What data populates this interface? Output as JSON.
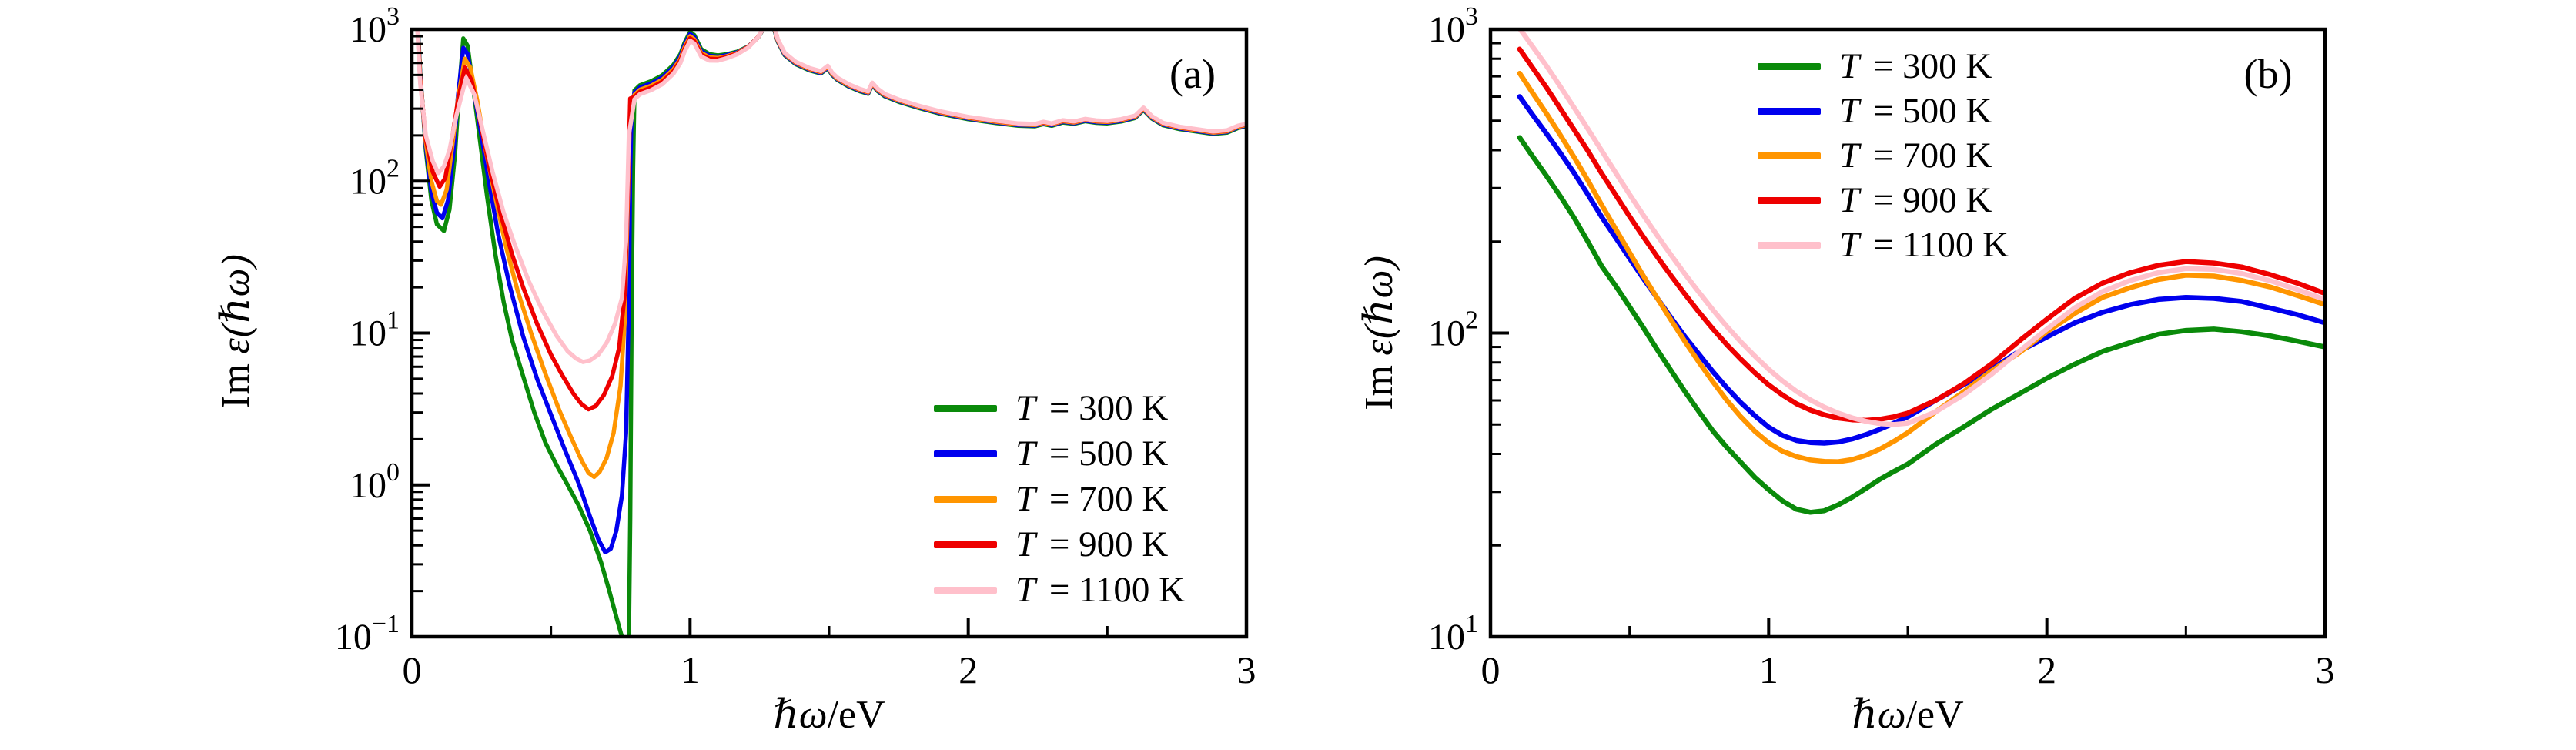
{
  "figure": {
    "background": "#ffffff",
    "axis_color": "#000000",
    "ylabel": "Im ε(ℏω)",
    "ylabel_prefix": "Im",
    "ylabel_symbol": "ε(ℏω)",
    "xlabel": "ℏω/eV",
    "xlabel_symbol": "ℏω",
    "xlabel_unit": "/eV"
  },
  "legend": {
    "entries": [
      {
        "label": "T = 300 K",
        "symbol": "T",
        "rest": "= 300 K",
        "temperature_K": 300,
        "color": "#0a8a0a"
      },
      {
        "label": "T = 500 K",
        "symbol": "T",
        "rest": "= 500 K",
        "temperature_K": 500,
        "color": "#0000ee"
      },
      {
        "label": "T = 700 K",
        "symbol": "T",
        "rest": "= 700 K",
        "temperature_K": 700,
        "color": "#ff9500"
      },
      {
        "label": "T = 900 K",
        "symbol": "T",
        "rest": "= 900 K",
        "temperature_K": 900,
        "color": "#ee0000"
      },
      {
        "label": "T = 1100 K",
        "symbol": "T",
        "rest": "= 1100 K",
        "temperature_K": 1100,
        "color": "#ffc0cb"
      }
    ]
  },
  "chart_data": [
    {
      "type": "line",
      "panel_label": "(a)",
      "xlabel": "ℏω/eV",
      "ylabel": "Im ε(ℏω)",
      "x_scale": "linear",
      "y_scale": "log",
      "xlim": [
        0,
        3
      ],
      "ylim": [
        0.1,
        1000
      ],
      "x_ticks": [
        0,
        1,
        2,
        3
      ],
      "x_tick_labels": [
        "0",
        "1",
        "2",
        "3"
      ],
      "x_minor_ticks": [
        0.5,
        1.5,
        2.5
      ],
      "y_ticks": [
        {
          "value": 1000,
          "exp": "3"
        },
        {
          "value": 100,
          "exp": "2"
        },
        {
          "value": 10,
          "exp": "1"
        },
        {
          "value": 1,
          "exp": "0"
        },
        {
          "value": 0.1,
          "exp": "−1"
        }
      ],
      "grid": false,
      "legend_position": "lower right",
      "line_width": 5.5,
      "blend_range": [
        1.0,
        1.3
      ],
      "common_tail": {
        "x": [
          0.8,
          0.82,
          0.86,
          0.9,
          0.94,
          0.965,
          0.98,
          1.0,
          1.015,
          1.04,
          1.07,
          1.1,
          1.13,
          1.17,
          1.21,
          1.245,
          1.27,
          1.285,
          1.3,
          1.315,
          1.34,
          1.38,
          1.43,
          1.47,
          1.495,
          1.51,
          1.53,
          1.57,
          1.61,
          1.64,
          1.655,
          1.675,
          1.7,
          1.75,
          1.82,
          1.9,
          2.0,
          2.1,
          2.18,
          2.24,
          2.27,
          2.3,
          2.34,
          2.38,
          2.42,
          2.46,
          2.5,
          2.55,
          2.6,
          2.63,
          2.66,
          2.7,
          2.76,
          2.82,
          2.88,
          2.93,
          2.97,
          3.0
        ],
        "base": [
          370,
          400,
          425,
          465,
          545,
          640,
          760,
          900,
          860,
          700,
          655,
          650,
          668,
          705,
          775,
          900,
          1080,
          1150,
          1080,
          860,
          700,
          610,
          555,
          530,
          575,
          520,
          480,
          435,
          405,
          390,
          445,
          405,
          375,
          345,
          315,
          288,
          265,
          250,
          240,
          238,
          246,
          240,
          252,
          247,
          257,
          251,
          249,
          256,
          270,
          305,
          268,
          242,
          228,
          220,
          212,
          216,
          232,
          238
        ]
      },
      "series": [
        {
          "name": "T = 300 K",
          "color": "#0a8a0a",
          "shoulder_factor": 1.07,
          "tail_factor": 0.965,
          "x": [
            0.018,
            0.03,
            0.05,
            0.07,
            0.09,
            0.115,
            0.135,
            0.155,
            0.17,
            0.185,
            0.2,
            0.22,
            0.245,
            0.27,
            0.3,
            0.33,
            0.36,
            0.4,
            0.44,
            0.48,
            0.52,
            0.56,
            0.6,
            0.64,
            0.68,
            0.71,
            0.735,
            0.755,
            0.77,
            0.78,
            0.785,
            0.79,
            0.795
          ],
          "y": [
            1400,
            520,
            160,
            75,
            52,
            47,
            65,
            150,
            400,
            870,
            780,
            420,
            185,
            80,
            33,
            16,
            9,
            5.2,
            3.0,
            1.9,
            1.35,
            1.0,
            0.73,
            0.5,
            0.31,
            0.2,
            0.135,
            0.1,
            0.088,
            0.09,
            0.6,
            15,
            120
          ]
        },
        {
          "name": "T = 500 K",
          "color": "#0000ee",
          "shoulder_factor": 1.035,
          "tail_factor": 0.975,
          "x": [
            0.018,
            0.03,
            0.05,
            0.07,
            0.09,
            0.11,
            0.13,
            0.15,
            0.165,
            0.185,
            0.2,
            0.22,
            0.25,
            0.28,
            0.31,
            0.35,
            0.4,
            0.45,
            0.5,
            0.55,
            0.6,
            0.64,
            0.67,
            0.695,
            0.715,
            0.735,
            0.755,
            0.77,
            0.78,
            0.785,
            0.79
          ],
          "y": [
            1350,
            500,
            170,
            85,
            62,
            57,
            75,
            160,
            350,
            755,
            690,
            420,
            200,
            92,
            45,
            21,
            9.5,
            5.0,
            2.9,
            1.7,
            1.02,
            0.62,
            0.44,
            0.36,
            0.38,
            0.5,
            0.85,
            2.2,
            15,
            120,
            300
          ]
        },
        {
          "name": "T = 700 K",
          "color": "#ff9500",
          "shoulder_factor": 1.0,
          "tail_factor": 0.985,
          "x": [
            0.018,
            0.03,
            0.05,
            0.07,
            0.09,
            0.105,
            0.125,
            0.145,
            0.165,
            0.19,
            0.21,
            0.235,
            0.265,
            0.3,
            0.34,
            0.38,
            0.43,
            0.48,
            0.53,
            0.57,
            0.61,
            0.635,
            0.655,
            0.675,
            0.7,
            0.725,
            0.75,
            0.765,
            0.775,
            0.785
          ],
          "y": [
            1300,
            480,
            180,
            100,
            74,
            70,
            88,
            170,
            340,
            640,
            560,
            340,
            160,
            78,
            36,
            19,
            9.8,
            5.4,
            3.1,
            2.1,
            1.45,
            1.2,
            1.13,
            1.22,
            1.5,
            2.2,
            4.5,
            12,
            60,
            320
          ]
        },
        {
          "name": "T = 900 K",
          "color": "#ee0000",
          "shoulder_factor": 0.97,
          "tail_factor": 0.995,
          "x": [
            0.018,
            0.03,
            0.05,
            0.075,
            0.1,
            0.12,
            0.14,
            0.165,
            0.19,
            0.215,
            0.245,
            0.28,
            0.32,
            0.36,
            0.4,
            0.45,
            0.5,
            0.54,
            0.58,
            0.61,
            0.635,
            0.66,
            0.69,
            0.72,
            0.745,
            0.765,
            0.775,
            0.785
          ],
          "y": [
            1250,
            460,
            190,
            115,
            92,
            105,
            170,
            330,
            560,
            460,
            250,
            120,
            60,
            33,
            20,
            11.5,
            7.2,
            5.3,
            4.0,
            3.4,
            3.15,
            3.3,
            3.9,
            5.2,
            8.0,
            18,
            70,
            350
          ]
        },
        {
          "name": "T = 1100 K",
          "color": "#ffc0cb",
          "shoulder_factor": 0.935,
          "tail_factor": 1.0,
          "x": [
            0.018,
            0.03,
            0.05,
            0.075,
            0.095,
            0.115,
            0.135,
            0.16,
            0.195,
            0.225,
            0.255,
            0.29,
            0.33,
            0.37,
            0.42,
            0.47,
            0.52,
            0.56,
            0.59,
            0.615,
            0.64,
            0.67,
            0.7,
            0.73,
            0.755,
            0.77,
            0.78
          ],
          "y": [
            1150,
            440,
            200,
            135,
            113,
            125,
            160,
            270,
            480,
            370,
            215,
            115,
            62,
            38,
            22,
            14,
            9.6,
            7.6,
            6.8,
            6.45,
            6.6,
            7.2,
            8.6,
            11.5,
            17,
            40,
            200
          ]
        }
      ]
    },
    {
      "type": "line",
      "panel_label": "(b)",
      "xlabel": "ℏω/eV",
      "ylabel": "Im ε(ℏω)",
      "x_scale": "linear",
      "y_scale": "log",
      "xlim": [
        0,
        3
      ],
      "ylim": [
        10,
        1000
      ],
      "x_ticks": [
        0,
        1,
        2,
        3
      ],
      "x_tick_labels": [
        "0",
        "1",
        "2",
        "3"
      ],
      "x_minor_ticks": [
        0.5,
        1.5,
        2.5
      ],
      "y_ticks": [
        {
          "value": 1000,
          "exp": "3"
        },
        {
          "value": 100,
          "exp": "2"
        },
        {
          "value": 10,
          "exp": "1"
        }
      ],
      "grid": false,
      "legend_position": "upper left",
      "line_width": 6.5,
      "x_shared": [
        0.105,
        0.15,
        0.2,
        0.25,
        0.3,
        0.35,
        0.4,
        0.45,
        0.5,
        0.55,
        0.6,
        0.65,
        0.7,
        0.75,
        0.8,
        0.85,
        0.9,
        0.95,
        1.0,
        1.05,
        1.1,
        1.15,
        1.2,
        1.25,
        1.3,
        1.35,
        1.4,
        1.45,
        1.5,
        1.6,
        1.7,
        1.8,
        1.9,
        2.0,
        2.1,
        2.2,
        2.3,
        2.4,
        2.5,
        2.6,
        2.7,
        2.8,
        2.9,
        3.0
      ],
      "series": [
        {
          "name": "T = 300 K",
          "color": "#0a8a0a",
          "y": [
            440,
            383,
            330,
            283,
            240,
            200,
            166,
            143,
            122,
            104,
            88,
            75,
            64,
            55,
            47.5,
            42,
            37.5,
            33.5,
            30.5,
            28,
            26.3,
            25.7,
            26,
            27.2,
            28.8,
            30.8,
            33,
            35,
            37,
            43,
            49,
            56,
            63,
            71,
            79,
            87,
            93,
            99,
            102,
            103,
            101,
            98,
            94,
            90
          ]
        },
        {
          "name": "T = 500 K",
          "color": "#0000ee",
          "y": [
            600,
            525,
            455,
            393,
            337,
            286,
            241,
            206,
            176,
            151,
            130,
            112,
            97,
            85,
            74.5,
            66,
            59,
            53.5,
            49,
            46,
            44.3,
            43.6,
            43.4,
            43.8,
            44.8,
            46.3,
            48.2,
            50.5,
            53,
            60,
            67.5,
            76,
            87,
            97,
            108,
            117,
            124,
            129,
            131,
            130,
            127,
            121,
            115,
            108
          ]
        },
        {
          "name": "T = 700 K",
          "color": "#ff9500",
          "y": [
            716,
            620,
            530,
            450,
            380,
            318,
            264,
            220,
            184,
            154,
            130,
            110,
            93.5,
            80,
            69,
            60,
            53,
            47.5,
            43.5,
            40.8,
            39.2,
            38.2,
            37.8,
            37.7,
            38.3,
            39.6,
            41.5,
            44,
            47,
            55,
            64,
            75,
            86,
            101,
            116,
            131,
            141,
            150,
            155,
            154,
            149,
            142,
            133,
            124
          ]
        },
        {
          "name": "T = 900 K",
          "color": "#ee0000",
          "y": [
            860,
            750,
            645,
            550,
            468,
            398,
            335,
            285,
            242,
            207,
            178,
            154,
            134,
            117,
            103,
            91.5,
            82,
            74,
            67.5,
            62.5,
            58.5,
            55.8,
            53.8,
            52.5,
            51.8,
            51.6,
            52,
            53,
            54.5,
            60,
            68,
            79,
            94,
            111,
            130,
            146,
            158,
            167,
            172,
            170,
            165,
            156,
            146,
            135
          ]
        },
        {
          "name": "T = 1100 K",
          "color": "#ffc0cb",
          "y": [
            1005,
            880,
            760,
            650,
            553,
            470,
            398,
            337,
            286,
            244,
            209,
            180,
            156,
            136,
            119,
            105,
            93.5,
            84,
            76,
            69.5,
            64.3,
            60.2,
            57,
            54.5,
            52.6,
            51.2,
            50.3,
            50,
            50.5,
            55,
            62.5,
            73,
            87,
            103,
            121,
            137,
            149,
            158,
            163,
            162,
            157,
            149,
            139,
            129
          ]
        }
      ]
    }
  ]
}
